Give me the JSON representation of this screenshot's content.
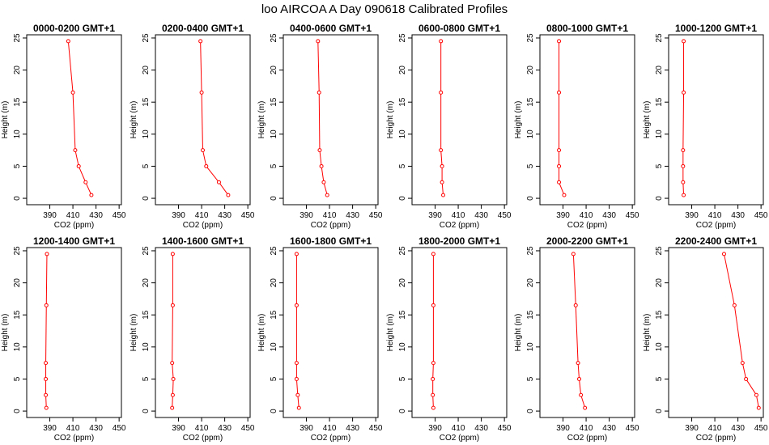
{
  "title": "loo AIRCOA A  Day 090618  Calibrated Profiles",
  "colors": {
    "series": "#ff0000",
    "axes": "#000000",
    "background": "#ffffff"
  },
  "chart_data": [
    {
      "type": "line",
      "title": "0000-0200 GMT+1",
      "xlabel": "CO2 (ppm)",
      "ylabel": "Height (m)",
      "xlim": [
        370,
        452
      ],
      "ylim": [
        -1,
        25.5
      ],
      "xticks": [
        390,
        410,
        430,
        450
      ],
      "yticks": [
        0,
        5,
        10,
        15,
        20,
        25
      ],
      "x": [
        426,
        421,
        415,
        412,
        410,
        406
      ],
      "y": [
        0.5,
        2.5,
        5,
        7.5,
        16.5,
        24.5
      ]
    },
    {
      "type": "line",
      "title": "0200-0400 GMT+1",
      "xlabel": "CO2 (ppm)",
      "ylabel": "Height (m)",
      "xlim": [
        370,
        452
      ],
      "ylim": [
        -1,
        25.5
      ],
      "xticks": [
        390,
        410,
        430,
        450
      ],
      "yticks": [
        0,
        5,
        10,
        15,
        20,
        25
      ],
      "x": [
        433,
        425,
        414,
        411,
        410,
        409
      ],
      "y": [
        0.5,
        2.5,
        5,
        7.5,
        16.5,
        24.5
      ]
    },
    {
      "type": "line",
      "title": "0400-0600 GMT+1",
      "xlabel": "CO2 (ppm)",
      "ylabel": "Height (m)",
      "xlim": [
        370,
        452
      ],
      "ylim": [
        -1,
        25.5
      ],
      "xticks": [
        390,
        410,
        430,
        450
      ],
      "yticks": [
        0,
        5,
        10,
        15,
        20,
        25
      ],
      "x": [
        408,
        405,
        403,
        401.5,
        401,
        400
      ],
      "y": [
        0.5,
        2.5,
        5,
        7.5,
        16.5,
        24.5
      ]
    },
    {
      "type": "line",
      "title": "0600-0800 GMT+1",
      "xlabel": "CO2 (ppm)",
      "ylabel": "Height (m)",
      "xlim": [
        370,
        452
      ],
      "ylim": [
        -1,
        25.5
      ],
      "xticks": [
        390,
        410,
        430,
        450
      ],
      "yticks": [
        0,
        5,
        10,
        15,
        20,
        25
      ],
      "x": [
        397,
        396,
        396,
        395,
        395,
        395
      ],
      "y": [
        0.5,
        2.5,
        5,
        7.5,
        16.5,
        24.5
      ]
    },
    {
      "type": "line",
      "title": "0800-1000 GMT+1",
      "xlabel": "CO2 (ppm)",
      "ylabel": "Height (m)",
      "xlim": [
        370,
        452
      ],
      "ylim": [
        -1,
        25.5
      ],
      "xticks": [
        390,
        410,
        430,
        450
      ],
      "yticks": [
        0,
        5,
        10,
        15,
        20,
        25
      ],
      "x": [
        391,
        386.5,
        386.5,
        386.5,
        386.5,
        386.5
      ],
      "y": [
        0.5,
        2.5,
        5,
        7.5,
        16.5,
        24.5
      ]
    },
    {
      "type": "line",
      "title": "1000-1200 GMT+1",
      "xlabel": "CO2 (ppm)",
      "ylabel": "Height (m)",
      "xlim": [
        370,
        452
      ],
      "ylim": [
        -1,
        25.5
      ],
      "xticks": [
        390,
        410,
        430,
        450
      ],
      "yticks": [
        0,
        5,
        10,
        15,
        20,
        25
      ],
      "x": [
        383,
        382.5,
        382.5,
        382.5,
        383,
        383
      ],
      "y": [
        0.5,
        2.5,
        5,
        7.5,
        16.5,
        24.5
      ]
    },
    {
      "type": "line",
      "title": "1200-1400 GMT+1",
      "xlabel": "CO2 (ppm)",
      "ylabel": "Height (m)",
      "xlim": [
        370,
        452
      ],
      "ylim": [
        -1,
        25.5
      ],
      "xticks": [
        390,
        410,
        430,
        450
      ],
      "yticks": [
        0,
        5,
        10,
        15,
        20,
        25
      ],
      "x": [
        387,
        386.5,
        386.5,
        386.5,
        387,
        387.5
      ],
      "y": [
        0.5,
        2.5,
        5,
        7.5,
        16.5,
        24.5
      ]
    },
    {
      "type": "line",
      "title": "1400-1600 GMT+1",
      "xlabel": "CO2 (ppm)",
      "ylabel": "Height (m)",
      "xlim": [
        370,
        452
      ],
      "ylim": [
        -1,
        25.5
      ],
      "xticks": [
        390,
        410,
        430,
        450
      ],
      "yticks": [
        0,
        5,
        10,
        15,
        20,
        25
      ],
      "x": [
        384.5,
        385,
        385.5,
        384.5,
        385,
        385
      ],
      "y": [
        0.5,
        2.5,
        5,
        7.5,
        16.5,
        24.5
      ]
    },
    {
      "type": "line",
      "title": "1600-1800 GMT+1",
      "xlabel": "CO2 (ppm)",
      "ylabel": "Height (m)",
      "xlim": [
        370,
        452
      ],
      "ylim": [
        -1,
        25.5
      ],
      "xticks": [
        390,
        410,
        430,
        450
      ],
      "yticks": [
        0,
        5,
        10,
        15,
        20,
        25
      ],
      "x": [
        383.5,
        382.5,
        381.5,
        381.5,
        381.5,
        381.5
      ],
      "y": [
        0.5,
        2.5,
        5,
        7.5,
        16.5,
        24.5
      ]
    },
    {
      "type": "line",
      "title": "1800-2000 GMT+1",
      "xlabel": "CO2 (ppm)",
      "ylabel": "Height (m)",
      "xlim": [
        370,
        452
      ],
      "ylim": [
        -1,
        25.5
      ],
      "xticks": [
        390,
        410,
        430,
        450
      ],
      "yticks": [
        0,
        5,
        10,
        15,
        20,
        25
      ],
      "x": [
        388.5,
        388,
        388,
        388.5,
        388.5,
        388.5
      ],
      "y": [
        0.5,
        2.5,
        5,
        7.5,
        16.5,
        24.5
      ]
    },
    {
      "type": "line",
      "title": "2000-2200 GMT+1",
      "xlabel": "CO2 (ppm)",
      "ylabel": "Height (m)",
      "xlim": [
        370,
        452
      ],
      "ylim": [
        -1,
        25.5
      ],
      "xticks": [
        390,
        410,
        430,
        450
      ],
      "yticks": [
        0,
        5,
        10,
        15,
        20,
        25
      ],
      "x": [
        409,
        405.5,
        404,
        403,
        401,
        399
      ],
      "y": [
        0.5,
        2.5,
        5,
        7.5,
        16.5,
        24.5
      ]
    },
    {
      "type": "line",
      "title": "2200-2400 GMT+1",
      "xlabel": "CO2 (ppm)",
      "ylabel": "Height (m)",
      "xlim": [
        370,
        452
      ],
      "ylim": [
        -1,
        25.5
      ],
      "xticks": [
        390,
        410,
        430,
        450
      ],
      "yticks": [
        0,
        5,
        10,
        15,
        20,
        25
      ],
      "x": [
        448,
        446,
        437,
        434,
        427,
        418
      ],
      "y": [
        0.5,
        2.5,
        5,
        7.5,
        16.5,
        24.5
      ]
    }
  ]
}
